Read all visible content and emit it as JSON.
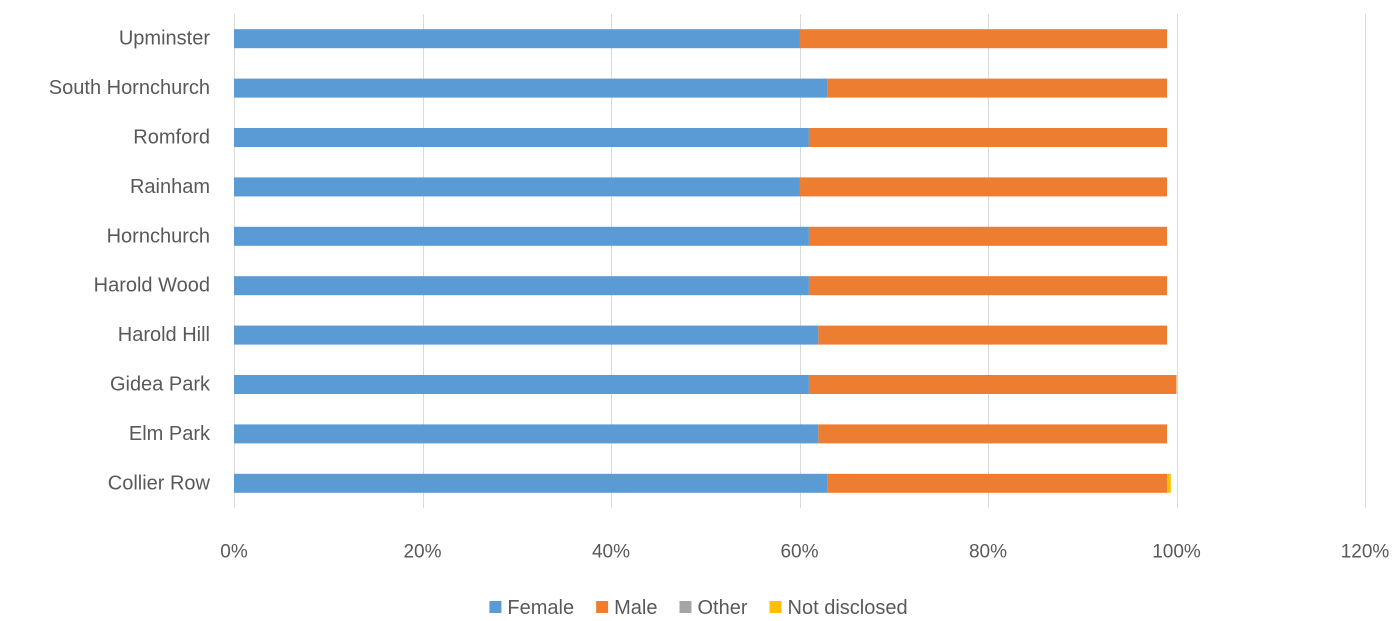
{
  "chart_data": {
    "type": "bar",
    "orientation": "horizontal",
    "stacked": true,
    "title": "",
    "xlabel": "",
    "ylabel": "",
    "categories": [
      "Collier Row",
      "Elm Park",
      "Gidea Park",
      "Harold Hill",
      "Harold Wood",
      "Hornchurch",
      "Rainham",
      "Romford",
      "South Hornchurch",
      "Upminster"
    ],
    "series": [
      {
        "name": "Female",
        "color": "#5b9bd5",
        "values": [
          0.63,
          0.62,
          0.61,
          0.62,
          0.61,
          0.61,
          0.6,
          0.61,
          0.63,
          0.6
        ]
      },
      {
        "name": "Male",
        "color": "#ed7d31",
        "values": [
          0.36,
          0.37,
          0.39,
          0.37,
          0.38,
          0.38,
          0.39,
          0.38,
          0.36,
          0.39
        ]
      },
      {
        "name": "Other",
        "color": "#a5a5a5",
        "values": [
          0,
          0,
          0,
          0,
          0,
          0,
          0,
          0,
          0,
          0
        ]
      },
      {
        "name": "Not disclosed",
        "color": "#ffc000",
        "values": [
          0.004,
          0,
          0,
          0,
          0,
          0,
          0,
          0,
          0,
          0
        ]
      }
    ],
    "xlim": [
      0,
      1.2
    ],
    "x_ticks": [
      0,
      0.2,
      0.4,
      0.6,
      0.8,
      1.0,
      1.2
    ],
    "x_tick_labels": [
      "0%",
      "20%",
      "40%",
      "60%",
      "80%",
      "100%",
      "120%"
    ],
    "grid": true,
    "legend_position": "bottom"
  }
}
